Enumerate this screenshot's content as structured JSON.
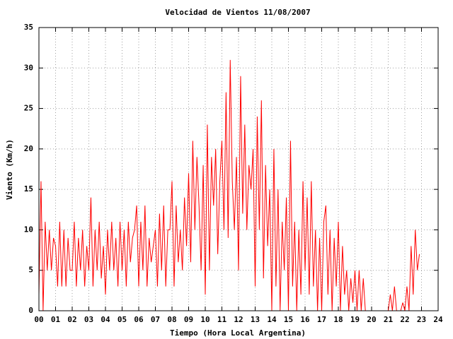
{
  "chart_data": {
    "type": "line",
    "title": "Velocidad de Vientos 11/08/2007",
    "x_label": "Tiempo (Hora Local Argentina)",
    "y_label": "Viento (Km/h)",
    "xlim": [
      0,
      24
    ],
    "ylim": [
      0,
      35
    ],
    "xticks": [
      {
        "value": 0,
        "label": "00"
      },
      {
        "value": 1,
        "label": "01"
      },
      {
        "value": 2,
        "label": "02"
      },
      {
        "value": 3,
        "label": "03"
      },
      {
        "value": 4,
        "label": "04"
      },
      {
        "value": 5,
        "label": "05"
      },
      {
        "value": 6,
        "label": "06"
      },
      {
        "value": 7,
        "label": "07"
      },
      {
        "value": 8,
        "label": "08"
      },
      {
        "value": 9,
        "label": "09"
      },
      {
        "value": 10,
        "label": "10"
      },
      {
        "value": 11,
        "label": "11"
      },
      {
        "value": 12,
        "label": "12"
      },
      {
        "value": 13,
        "label": "13"
      },
      {
        "value": 14,
        "label": "14"
      },
      {
        "value": 15,
        "label": "15"
      },
      {
        "value": 16,
        "label": "16"
      },
      {
        "value": 17,
        "label": "17"
      },
      {
        "value": 18,
        "label": "18"
      },
      {
        "value": 19,
        "label": "19"
      },
      {
        "value": 20,
        "label": "20"
      },
      {
        "value": 21,
        "label": "21"
      },
      {
        "value": 22,
        "label": "22"
      },
      {
        "value": 23,
        "label": "23"
      },
      {
        "value": 24,
        "label": "24"
      }
    ],
    "yticks": [
      0,
      5,
      10,
      15,
      20,
      25,
      30,
      35
    ],
    "grid": true,
    "series": [
      {
        "color": "#ff0000",
        "x": [
          0,
          0.125,
          0.25,
          0.375,
          0.5,
          0.625,
          0.75,
          0.875,
          1,
          1.125,
          1.25,
          1.375,
          1.5,
          1.625,
          1.75,
          1.875,
          2,
          2.125,
          2.25,
          2.375,
          2.5,
          2.625,
          2.75,
          2.875,
          3,
          3.125,
          3.25,
          3.375,
          3.5,
          3.625,
          3.75,
          3.875,
          4,
          4.125,
          4.25,
          4.375,
          4.5,
          4.625,
          4.75,
          4.875,
          5,
          5.125,
          5.25,
          5.375,
          5.5,
          5.625,
          5.75,
          5.875,
          6,
          6.125,
          6.25,
          6.375,
          6.5,
          6.625,
          6.75,
          6.875,
          7,
          7.125,
          7.25,
          7.375,
          7.5,
          7.625,
          7.75,
          7.875,
          8,
          8.125,
          8.25,
          8.375,
          8.5,
          8.625,
          8.75,
          8.875,
          9,
          9.125,
          9.25,
          9.375,
          9.5,
          9.625,
          9.75,
          9.875,
          10,
          10.125,
          10.25,
          10.375,
          10.5,
          10.625,
          10.75,
          10.875,
          11,
          11.125,
          11.25,
          11.375,
          11.5,
          11.625,
          11.75,
          11.875,
          12,
          12.125,
          12.25,
          12.375,
          12.5,
          12.625,
          12.75,
          12.875,
          13,
          13.125,
          13.25,
          13.375,
          13.5,
          13.625,
          13.75,
          13.875,
          14,
          14.125,
          14.25,
          14.375,
          14.5,
          14.625,
          14.75,
          14.875,
          15,
          15.125,
          15.25,
          15.375,
          15.5,
          15.625,
          15.75,
          15.875,
          16,
          16.125,
          16.25,
          16.375,
          16.5,
          16.625,
          16.75,
          16.875,
          17,
          17.125,
          17.25,
          17.375,
          17.5,
          17.625,
          17.75,
          17.875,
          18,
          18.125,
          18.25,
          18.375,
          18.5,
          18.625,
          18.75,
          18.875,
          19,
          19.125,
          19.25,
          19.375,
          19.5,
          19.625,
          19.75,
          19.875,
          20,
          20.125,
          20.25,
          20.375,
          20.5,
          20.625,
          20.75,
          20.875,
          21,
          21.125,
          21.25,
          21.375,
          21.5,
          21.625,
          21.75,
          21.875,
          22,
          22.125,
          22.25,
          22.375,
          22.5,
          22.625,
          22.75,
          22.875
        ],
        "values": [
          2,
          16,
          0,
          11,
          5,
          10,
          5,
          9,
          8,
          3,
          11,
          3,
          10,
          3,
          9,
          5,
          5,
          11,
          3,
          9,
          5,
          10,
          3,
          8,
          5,
          14,
          3,
          10,
          5,
          11,
          4,
          8,
          2,
          10,
          5,
          11,
          5,
          9,
          3,
          11,
          5,
          10,
          3,
          11,
          6,
          9,
          10,
          13,
          3,
          11,
          5,
          13,
          3,
          9,
          6,
          8,
          10,
          3,
          12,
          5,
          13,
          3,
          10,
          10,
          16,
          3,
          13,
          6,
          10,
          5,
          14,
          8,
          17,
          6,
          21,
          10,
          19,
          13,
          5,
          18,
          2,
          23,
          5,
          19,
          13,
          20,
          7,
          16,
          21,
          10,
          27,
          9,
          31,
          16,
          10,
          19,
          5,
          29,
          12,
          23,
          10,
          18,
          15,
          20,
          3,
          24,
          10,
          26,
          4,
          18,
          8,
          15,
          0,
          20,
          3,
          15,
          0,
          11,
          5,
          14,
          0,
          21,
          3,
          11,
          0,
          10,
          2,
          16,
          5,
          14,
          2,
          16,
          3,
          10,
          0,
          9,
          0,
          11,
          13,
          2,
          10,
          0,
          9,
          3,
          11,
          0,
          8,
          2,
          5,
          0,
          4,
          1,
          5,
          0,
          5,
          0,
          4,
          0,
          0,
          0,
          0,
          0,
          0,
          0,
          0,
          0,
          0,
          0,
          0,
          2,
          0,
          3,
          0,
          0,
          0,
          1,
          0,
          3,
          0,
          8,
          2,
          10,
          5,
          7
        ]
      }
    ]
  }
}
